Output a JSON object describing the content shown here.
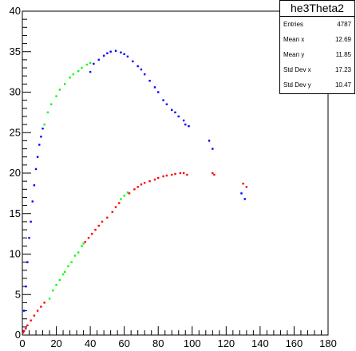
{
  "stats": {
    "title": "he3Theta2",
    "rows": [
      {
        "label": "Entries",
        "value": "4787"
      },
      {
        "label": "Mean x",
        "value": "12.69"
      },
      {
        "label": "Mean y",
        "value": "11.85"
      },
      {
        "label": "Std Dev x",
        "value": "17.23"
      },
      {
        "label": "Std Dev y",
        "value": "10.47"
      }
    ]
  },
  "chart_data": {
    "type": "scatter",
    "title": "",
    "xlabel": "",
    "ylabel": "",
    "xlim": [
      0,
      180
    ],
    "ylim": [
      0,
      40
    ],
    "x_ticks": [
      0,
      20,
      40,
      60,
      80,
      100,
      120,
      140,
      160,
      180
    ],
    "y_ticks": [
      0,
      5,
      10,
      15,
      20,
      25,
      30,
      35,
      40
    ],
    "grid": false,
    "series": [
      {
        "color": "#0000ff",
        "points": [
          [
            0.5,
            0.5
          ],
          [
            1,
            3
          ],
          [
            2,
            6
          ],
          [
            3,
            9
          ],
          [
            4,
            12
          ],
          [
            5,
            14
          ],
          [
            6,
            16.5
          ],
          [
            7,
            18.5
          ],
          [
            8,
            20.5
          ],
          [
            9,
            22
          ],
          [
            10,
            23.5
          ],
          [
            11,
            24.5
          ],
          [
            12,
            25.5
          ],
          [
            40,
            32.5
          ],
          [
            42,
            33.5
          ],
          [
            45,
            34
          ],
          [
            48,
            34.5
          ],
          [
            50,
            34.8
          ],
          [
            52,
            35
          ],
          [
            55,
            35.1
          ],
          [
            58,
            34.9
          ],
          [
            60,
            34.7
          ],
          [
            62,
            34.4
          ],
          [
            65,
            33.8
          ],
          [
            68,
            33.2
          ],
          [
            70,
            32.8
          ],
          [
            72,
            32.2
          ],
          [
            75,
            31.4
          ],
          [
            78,
            30.6
          ],
          [
            80,
            30
          ],
          [
            83,
            29
          ],
          [
            85,
            28.5
          ],
          [
            88,
            27.8
          ],
          [
            90,
            27.5
          ],
          [
            92,
            27
          ],
          [
            95,
            26.5
          ],
          [
            96,
            26
          ],
          [
            98,
            25.8
          ],
          [
            110,
            24
          ],
          [
            112,
            23
          ],
          [
            129,
            17.5
          ],
          [
            131,
            16.8
          ]
        ]
      },
      {
        "color": "#00ff00",
        "points": [
          [
            13,
            26
          ],
          [
            15,
            27.5
          ],
          [
            17,
            28.5
          ],
          [
            20,
            29.5
          ],
          [
            22,
            30.3
          ],
          [
            25,
            31
          ],
          [
            28,
            31.8
          ],
          [
            30,
            32.2
          ],
          [
            33,
            32.6
          ],
          [
            35,
            33
          ],
          [
            38,
            33.4
          ],
          [
            40,
            33.6
          ],
          [
            16,
            4.5
          ],
          [
            18,
            5.5
          ],
          [
            20,
            6.2
          ],
          [
            22,
            6.8
          ],
          [
            24,
            7.5
          ],
          [
            25,
            7.8
          ],
          [
            27,
            8.5
          ],
          [
            29,
            9
          ],
          [
            31,
            9.8
          ],
          [
            33,
            10.2
          ],
          [
            35,
            11
          ],
          [
            36,
            11.3
          ],
          [
            58,
            16.8
          ],
          [
            60,
            17.2
          ],
          [
            62,
            17.6
          ]
        ]
      },
      {
        "color": "#ff0000",
        "points": [
          [
            0.5,
            0.3
          ],
          [
            1,
            0.5
          ],
          [
            2,
            0.8
          ],
          [
            3,
            1.2
          ],
          [
            5,
            1.8
          ],
          [
            7,
            2.4
          ],
          [
            9,
            3
          ],
          [
            11,
            3.5
          ],
          [
            13,
            4
          ],
          [
            37,
            11.5
          ],
          [
            39,
            12
          ],
          [
            41,
            12.5
          ],
          [
            43,
            13
          ],
          [
            45,
            13.5
          ],
          [
            47,
            14
          ],
          [
            50,
            14.5
          ],
          [
            53,
            15.2
          ],
          [
            55,
            15.8
          ],
          [
            57,
            16.3
          ],
          [
            63,
            17.5
          ],
          [
            66,
            18
          ],
          [
            68,
            18.3
          ],
          [
            70,
            18.6
          ],
          [
            72,
            18.8
          ],
          [
            75,
            19
          ],
          [
            78,
            19.2
          ],
          [
            80,
            19.4
          ],
          [
            83,
            19.6
          ],
          [
            85,
            19.7
          ],
          [
            88,
            19.8
          ],
          [
            90,
            19.9
          ],
          [
            93,
            20
          ],
          [
            95,
            20
          ],
          [
            97,
            19.8
          ],
          [
            112,
            20
          ],
          [
            113,
            19.8
          ],
          [
            130,
            18.7
          ],
          [
            132,
            18.3
          ]
        ]
      }
    ]
  }
}
